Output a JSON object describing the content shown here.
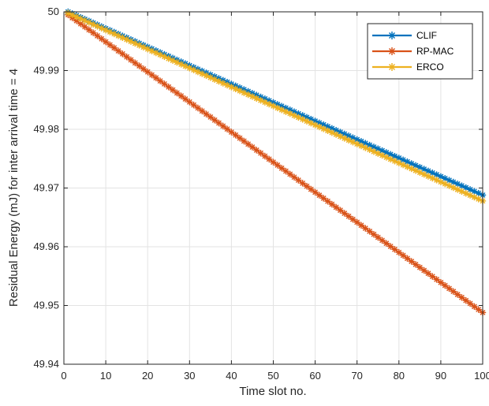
{
  "chart_data": {
    "type": "line",
    "title": "",
    "xlabel": "Time slot no.",
    "ylabel": "Residual Energy (mJ) for inter arrival time = 4",
    "xlim": [
      0,
      100
    ],
    "ylim": [
      49.94,
      50
    ],
    "xticks": [
      0,
      10,
      20,
      30,
      40,
      50,
      60,
      70,
      80,
      90,
      100
    ],
    "yticks": [
      49.94,
      49.95,
      49.96,
      49.97,
      49.98,
      49.99,
      50
    ],
    "xtick_labels": [
      "0",
      "10",
      "20",
      "30",
      "40",
      "50",
      "60",
      "70",
      "80",
      "90",
      "100"
    ],
    "ytick_labels": [
      "49.94",
      "49.95",
      "49.96",
      "49.97",
      "49.98",
      "49.99",
      "50"
    ],
    "grid": true,
    "legend_position": "top-right",
    "series": [
      {
        "name": "CLIF",
        "color": "#0072BD",
        "marker": "asterisk",
        "x": [
          1,
          100
        ],
        "y": [
          50.0,
          49.9688
        ]
      },
      {
        "name": "RP-MAC",
        "color": "#D95319",
        "marker": "asterisk",
        "x": [
          1,
          100
        ],
        "y": [
          49.9995,
          49.9488
        ]
      },
      {
        "name": "ERCO",
        "color": "#EDB120",
        "marker": "asterisk",
        "x": [
          1,
          100
        ],
        "y": [
          49.9998,
          49.9678
        ]
      }
    ]
  }
}
